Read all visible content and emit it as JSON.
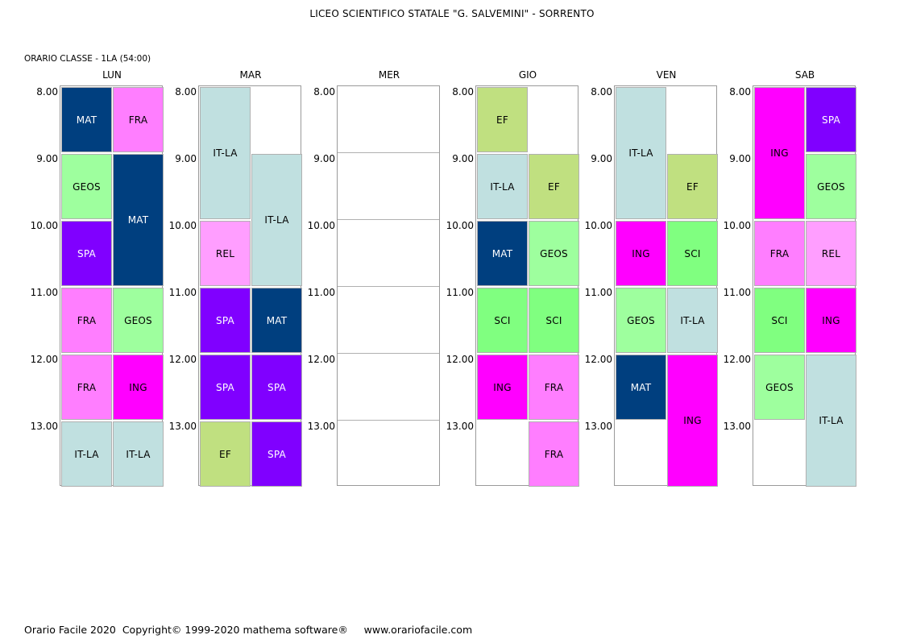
{
  "header": {
    "school": "LICEO SCIENTIFICO STATALE \"G. SALVEMINI\" - SORRENTO",
    "class_label": "ORARIO CLASSE  -  1LA  (54:00)"
  },
  "times": [
    "8.00",
    "9.00",
    "10.00",
    "11.00",
    "12.00",
    "13.00"
  ],
  "subject_colors": {
    "MAT": {
      "bg": "#003f7f",
      "fg": "#ffffff"
    },
    "FRA": {
      "bg": "#ff7eff",
      "fg": "#000000"
    },
    "GEOS": {
      "bg": "#9eff9e",
      "fg": "#000000"
    },
    "SPA": {
      "bg": "#8000ff",
      "fg": "#ffffff"
    },
    "ING": {
      "bg": "#ff00ff",
      "fg": "#000000"
    },
    "IT-LA": {
      "bg": "#c0e0e0",
      "fg": "#000000"
    },
    "REL": {
      "bg": "#ff9eff",
      "fg": "#000000"
    },
    "EF": {
      "bg": "#c0e080",
      "fg": "#000000"
    },
    "SCI": {
      "bg": "#80ff80",
      "fg": "#000000"
    }
  },
  "days": [
    {
      "name": "LUN",
      "lessons": [
        {
          "subject": "MAT",
          "col": 0,
          "start": 0,
          "span": 1
        },
        {
          "subject": "FRA",
          "col": 1,
          "start": 0,
          "span": 1
        },
        {
          "subject": "GEOS",
          "col": 0,
          "start": 1,
          "span": 1
        },
        {
          "subject": "MAT",
          "col": 1,
          "start": 1,
          "span": 2
        },
        {
          "subject": "SPA",
          "col": 0,
          "start": 2,
          "span": 1
        },
        {
          "subject": "FRA",
          "col": 0,
          "start": 3,
          "span": 1
        },
        {
          "subject": "GEOS",
          "col": 1,
          "start": 3,
          "span": 1
        },
        {
          "subject": "FRA",
          "col": 0,
          "start": 4,
          "span": 1
        },
        {
          "subject": "ING",
          "col": 1,
          "start": 4,
          "span": 1
        },
        {
          "subject": "IT-LA",
          "col": 0,
          "start": 5,
          "span": 1
        },
        {
          "subject": "IT-LA",
          "col": 1,
          "start": 5,
          "span": 1
        }
      ]
    },
    {
      "name": "MAR",
      "lessons": [
        {
          "subject": "IT-LA",
          "col": 0,
          "start": 0,
          "span": 2
        },
        {
          "subject": "IT-LA",
          "col": 1,
          "start": 1,
          "span": 2
        },
        {
          "subject": "REL",
          "col": 0,
          "start": 2,
          "span": 1
        },
        {
          "subject": "SPA",
          "col": 0,
          "start": 3,
          "span": 1
        },
        {
          "subject": "MAT",
          "col": 1,
          "start": 3,
          "span": 1
        },
        {
          "subject": "SPA",
          "col": 0,
          "start": 4,
          "span": 1
        },
        {
          "subject": "SPA",
          "col": 1,
          "start": 4,
          "span": 1
        },
        {
          "subject": "EF",
          "col": 0,
          "start": 5,
          "span": 1
        },
        {
          "subject": "SPA",
          "col": 1,
          "start": 5,
          "span": 1
        }
      ]
    },
    {
      "name": "MER",
      "lessons": []
    },
    {
      "name": "GIO",
      "lessons": [
        {
          "subject": "EF",
          "col": 0,
          "start": 0,
          "span": 1
        },
        {
          "subject": "IT-LA",
          "col": 0,
          "start": 1,
          "span": 1
        },
        {
          "subject": "EF",
          "col": 1,
          "start": 1,
          "span": 1
        },
        {
          "subject": "MAT",
          "col": 0,
          "start": 2,
          "span": 1
        },
        {
          "subject": "GEOS",
          "col": 1,
          "start": 2,
          "span": 1
        },
        {
          "subject": "SCI",
          "col": 0,
          "start": 3,
          "span": 1
        },
        {
          "subject": "SCI",
          "col": 1,
          "start": 3,
          "span": 1
        },
        {
          "subject": "ING",
          "col": 0,
          "start": 4,
          "span": 1
        },
        {
          "subject": "FRA",
          "col": 1,
          "start": 4,
          "span": 1
        },
        {
          "subject": "FRA",
          "col": 1,
          "start": 5,
          "span": 1
        }
      ]
    },
    {
      "name": "VEN",
      "lessons": [
        {
          "subject": "IT-LA",
          "col": 0,
          "start": 0,
          "span": 2
        },
        {
          "subject": "EF",
          "col": 1,
          "start": 1,
          "span": 1
        },
        {
          "subject": "ING",
          "col": 0,
          "start": 2,
          "span": 1
        },
        {
          "subject": "SCI",
          "col": 1,
          "start": 2,
          "span": 1
        },
        {
          "subject": "GEOS",
          "col": 0,
          "start": 3,
          "span": 1
        },
        {
          "subject": "IT-LA",
          "col": 1,
          "start": 3,
          "span": 1
        },
        {
          "subject": "MAT",
          "col": 0,
          "start": 4,
          "span": 1
        },
        {
          "subject": "ING",
          "col": 1,
          "start": 4,
          "span": 2
        }
      ]
    },
    {
      "name": "SAB",
      "lessons": [
        {
          "subject": "ING",
          "col": 0,
          "start": 0,
          "span": 2
        },
        {
          "subject": "SPA",
          "col": 1,
          "start": 0,
          "span": 1
        },
        {
          "subject": "GEOS",
          "col": 1,
          "start": 1,
          "span": 1
        },
        {
          "subject": "FRA",
          "col": 0,
          "start": 2,
          "span": 1
        },
        {
          "subject": "REL",
          "col": 1,
          "start": 2,
          "span": 1
        },
        {
          "subject": "SCI",
          "col": 0,
          "start": 3,
          "span": 1
        },
        {
          "subject": "ING",
          "col": 1,
          "start": 3,
          "span": 1
        },
        {
          "subject": "GEOS",
          "col": 0,
          "start": 4,
          "span": 1
        },
        {
          "subject": "IT-LA",
          "col": 1,
          "start": 4,
          "span": 2
        }
      ]
    }
  ],
  "footer": {
    "text": "Orario Facile 2020  Copyright© 1999-2020 mathema software®     www.orariofacile.com"
  }
}
